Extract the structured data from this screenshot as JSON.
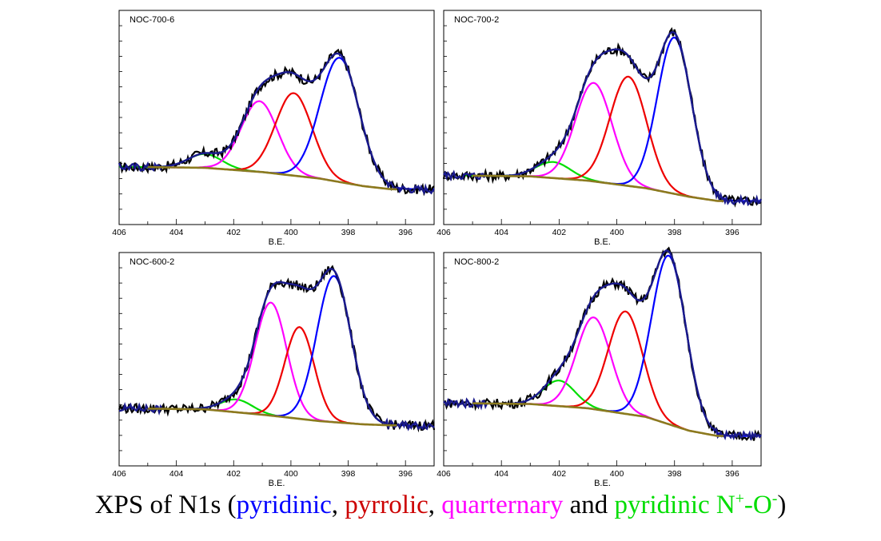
{
  "caption": {
    "prefix": "XPS of N1s (",
    "pyridinic": "pyridinic",
    "sep1": ", ",
    "pyrrolic": "pyrrolic",
    "sep2": ", ",
    "quaternary": "quarternary",
    "and": " and ",
    "n_oxide": "pyridinic N",
    "n_oxide_sup1": "+",
    "n_oxide_mid": "-O",
    "n_oxide_sup2": "-",
    "suffix": ")"
  },
  "colors": {
    "raw": "#000000",
    "envelope": "#1a1a8c",
    "pyridinic": "#0000ff",
    "pyrrolic": "#ee0000",
    "quaternary": "#ff00ff",
    "n_oxide": "#00dd00",
    "background": "#8b7a1e"
  },
  "chart_data": [
    {
      "type": "line",
      "title": "NOC-700-6",
      "xlabel": "B.E.",
      "ylabel": "",
      "xlim": [
        406,
        395
      ],
      "ylim": [
        0,
        1
      ],
      "x_reversed": true,
      "x_ticks": [
        "406",
        "404",
        "402",
        "400",
        "398",
        "396"
      ],
      "baseline": [
        [
          406,
          0.27
        ],
        [
          403,
          0.265
        ],
        [
          401,
          0.245
        ],
        [
          399,
          0.215
        ],
        [
          397.5,
          0.18
        ],
        [
          396.5,
          0.165
        ],
        [
          395,
          0.165
        ]
      ],
      "peaks": [
        {
          "component": "pyridinic",
          "center": 398.3,
          "height": 0.58,
          "fwhm": 1.6
        },
        {
          "component": "pyrrolic",
          "center": 399.9,
          "height": 0.385,
          "fwhm": 1.5
        },
        {
          "component": "quaternary",
          "center": 401.1,
          "height": 0.33,
          "fwhm": 1.5
        },
        {
          "component": "n_oxide",
          "center": 403.0,
          "height": 0.065,
          "fwhm": 1.4
        }
      ]
    },
    {
      "type": "line",
      "title": "NOC-700-2",
      "xlabel": "B.E.",
      "ylabel": "",
      "xlim": [
        406,
        395
      ],
      "ylim": [
        0,
        1
      ],
      "x_reversed": true,
      "x_ticks": [
        "406",
        "404",
        "402",
        "400",
        "398",
        "396"
      ],
      "baseline": [
        [
          406,
          0.23
        ],
        [
          403,
          0.225
        ],
        [
          401,
          0.205
        ],
        [
          399,
          0.17
        ],
        [
          397.5,
          0.13
        ],
        [
          396.5,
          0.11
        ],
        [
          395,
          0.11
        ]
      ],
      "peaks": [
        {
          "component": "pyridinic",
          "center": 398.0,
          "height": 0.73,
          "fwhm": 1.4
        },
        {
          "component": "pyrrolic",
          "center": 399.6,
          "height": 0.51,
          "fwhm": 1.5
        },
        {
          "component": "quaternary",
          "center": 400.8,
          "height": 0.46,
          "fwhm": 1.5
        },
        {
          "component": "n_oxide",
          "center": 402.2,
          "height": 0.075,
          "fwhm": 1.4
        }
      ]
    },
    {
      "type": "line",
      "title": "NOC-600-2",
      "xlabel": "B.E.",
      "ylabel": "",
      "xlim": [
        406,
        395
      ],
      "ylim": [
        0,
        1
      ],
      "x_reversed": true,
      "x_ticks": [
        "406",
        "404",
        "402",
        "400",
        "398",
        "396"
      ],
      "baseline": [
        [
          406,
          0.27
        ],
        [
          403,
          0.265
        ],
        [
          401,
          0.24
        ],
        [
          399,
          0.21
        ],
        [
          397.5,
          0.195
        ],
        [
          396.5,
          0.19
        ],
        [
          395,
          0.19
        ]
      ],
      "peaks": [
        {
          "component": "pyridinic",
          "center": 398.5,
          "height": 0.685,
          "fwhm": 1.4
        },
        {
          "component": "pyrrolic",
          "center": 399.7,
          "height": 0.43,
          "fwhm": 1.2
        },
        {
          "component": "quaternary",
          "center": 400.7,
          "height": 0.53,
          "fwhm": 1.3
        },
        {
          "component": "n_oxide",
          "center": 401.9,
          "height": 0.06,
          "fwhm": 1.3
        }
      ]
    },
    {
      "type": "line",
      "title": "NOC-800-2",
      "xlabel": "B.E.",
      "ylabel": "",
      "xlim": [
        406,
        395
      ],
      "ylim": [
        0,
        1
      ],
      "x_reversed": true,
      "x_ticks": [
        "406",
        "404",
        "402",
        "400",
        "398",
        "396"
      ],
      "baseline": [
        [
          406,
          0.295
        ],
        [
          403,
          0.29
        ],
        [
          401,
          0.27
        ],
        [
          399,
          0.23
        ],
        [
          397.5,
          0.165
        ],
        [
          396.5,
          0.14
        ],
        [
          395,
          0.14
        ]
      ],
      "peaks": [
        {
          "component": "pyridinic",
          "center": 398.2,
          "height": 0.79,
          "fwhm": 1.4
        },
        {
          "component": "pyrrolic",
          "center": 399.7,
          "height": 0.48,
          "fwhm": 1.4
        },
        {
          "component": "quaternary",
          "center": 400.8,
          "height": 0.43,
          "fwhm": 1.4
        },
        {
          "component": "n_oxide",
          "center": 402.0,
          "height": 0.12,
          "fwhm": 1.3
        }
      ]
    }
  ]
}
